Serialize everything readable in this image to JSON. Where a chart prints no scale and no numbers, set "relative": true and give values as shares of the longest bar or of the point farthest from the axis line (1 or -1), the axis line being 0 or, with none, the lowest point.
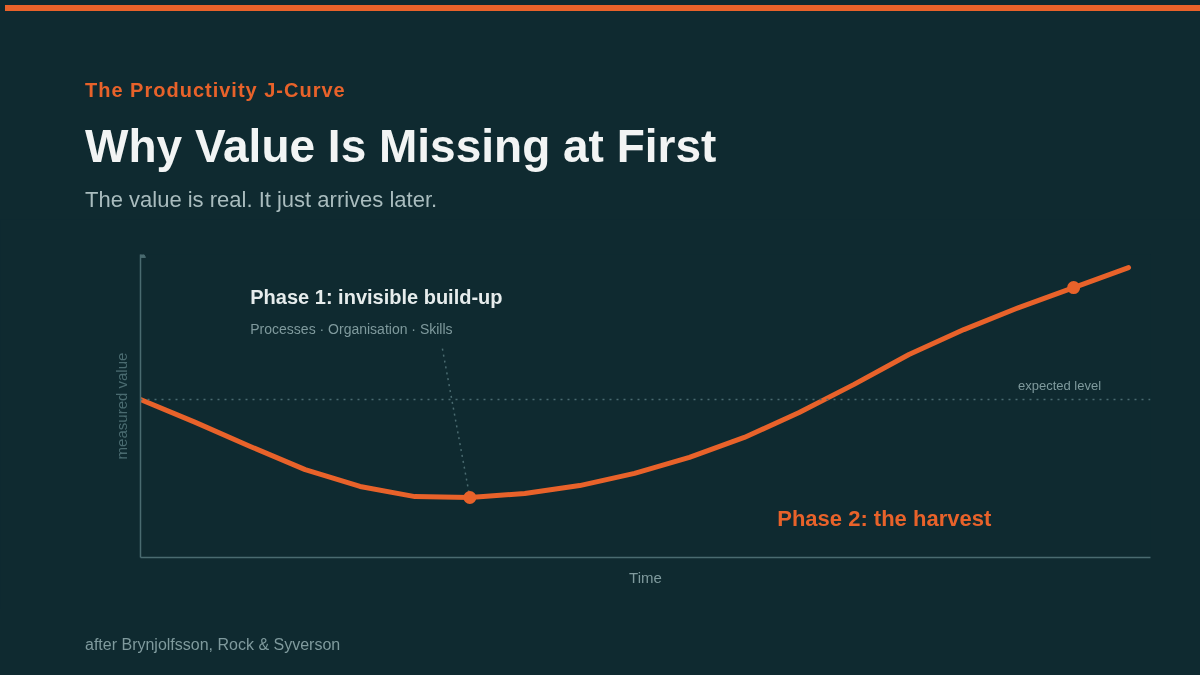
{
  "chart_data": {
    "type": "line",
    "title": "Why Value Is Missing at First",
    "subtitle": "The value is real. It just arrives later.",
    "ylabel": "measured value",
    "xlabel": "Time",
    "relative": true,
    "categories": [
      null,
      null,
      null,
      null,
      null,
      null,
      null,
      null,
      null,
      null,
      null,
      null,
      null,
      null,
      null,
      null,
      null,
      null,
      null
    ],
    "series": [
      {
        "color": "#e8622a",
        "values": [
          0.545,
          0.466,
          0.383,
          0.303,
          0.245,
          0.21,
          0.207,
          0.221,
          0.248,
          0.29,
          0.345,
          0.414,
          0.5,
          0.597,
          0.7,
          0.786,
          0.862,
          0.931,
          1.0
        ]
      }
    ],
    "ref_lines": [
      {
        "axis": "y",
        "value": 0.545,
        "label": "expected level",
        "color": "#4a6b70",
        "line_style": "dotted"
      }
    ],
    "annotations": [
      "The Productivity J-Curve",
      "Phase 1: invisible build-up",
      "Processes · Organisation · Skills",
      "Phase 2: the harvest",
      "after Brynjolfsson, Rock & Syverson"
    ],
    "grid": false
  }
}
